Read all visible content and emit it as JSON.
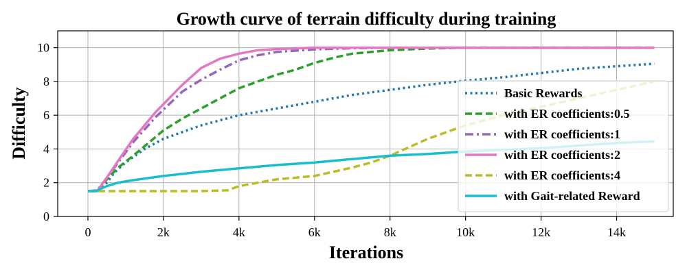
{
  "chart_data": {
    "type": "line",
    "title": "Growth curve of terrain difficulty during training",
    "xlabel": "Iterations",
    "ylabel": "Difficulty",
    "xlim": [
      -800,
      15500
    ],
    "ylim": [
      0,
      11
    ],
    "grid": true,
    "legend_position": "center-right",
    "x_ticks": [
      0,
      2000,
      4000,
      6000,
      8000,
      10000,
      12000,
      14000
    ],
    "x_tick_labels": [
      "0",
      "2k",
      "4k",
      "6k",
      "8k",
      "10k",
      "12k",
      "14k"
    ],
    "y_ticks": [
      0,
      2,
      4,
      6,
      8,
      10
    ],
    "y_tick_labels": [
      "0",
      "2",
      "4",
      "6",
      "8",
      "10"
    ],
    "series": [
      {
        "name": "Basic Rewards",
        "color": "#1f77b4",
        "style": "dotted",
        "x": [
          0,
          300,
          500,
          700,
          1000,
          1500,
          2000,
          2500,
          3000,
          4000,
          5000,
          6000,
          7000,
          8000,
          9000,
          10000,
          11000,
          12000,
          13000,
          14000,
          15000
        ],
        "y": [
          1.5,
          1.55,
          2.0,
          2.6,
          3.2,
          4.0,
          4.6,
          5.0,
          5.4,
          6.0,
          6.4,
          6.8,
          7.2,
          7.5,
          7.8,
          8.05,
          8.25,
          8.5,
          8.75,
          8.9,
          9.05
        ]
      },
      {
        "name": "with ER coefficients:0.5",
        "color": "#2ca02c",
        "style": "dashed",
        "x": [
          0,
          250,
          500,
          800,
          1200,
          2000,
          2500,
          3000,
          3500,
          4000,
          5000,
          5500,
          6000,
          6500,
          7000,
          7500,
          8000,
          9000,
          10000,
          11000,
          12000,
          13000,
          14000,
          15000
        ],
        "y": [
          1.5,
          1.5,
          2.2,
          2.9,
          3.6,
          5.1,
          5.8,
          6.4,
          7.0,
          7.6,
          8.4,
          8.7,
          9.1,
          9.4,
          9.65,
          9.75,
          9.85,
          9.95,
          10.0,
          10.0,
          10.0,
          10.0,
          10.0,
          10.0
        ]
      },
      {
        "name": "with ER coefficients:1",
        "color": "#9467bd",
        "style": "dashdot",
        "x": [
          0,
          250,
          500,
          800,
          1200,
          1800,
          2500,
          3000,
          3500,
          4000,
          4500,
          5000,
          6000,
          7000,
          8000,
          9000,
          10000,
          11000,
          12000,
          13000,
          14000,
          15000
        ],
        "y": [
          1.5,
          1.55,
          2.3,
          3.2,
          4.4,
          5.9,
          7.4,
          8.1,
          8.7,
          9.25,
          9.55,
          9.75,
          9.9,
          9.97,
          10.0,
          10.0,
          10.0,
          10.0,
          10.0,
          10.0,
          10.0,
          10.0
        ]
      },
      {
        "name": "with ER coefficients:2",
        "color": "#e377c2",
        "style": "solid",
        "x": [
          0,
          250,
          500,
          800,
          1200,
          1800,
          2500,
          3000,
          3500,
          4000,
          4500,
          5000,
          6000,
          7000,
          8000,
          9000,
          10000,
          11000,
          12000,
          13000,
          14000,
          15000
        ],
        "y": [
          1.5,
          1.5,
          2.3,
          3.3,
          4.6,
          6.2,
          7.8,
          8.8,
          9.35,
          9.65,
          9.85,
          9.92,
          10.0,
          10.0,
          10.0,
          10.0,
          10.0,
          10.0,
          10.0,
          10.0,
          10.0,
          10.0
        ]
      },
      {
        "name": "with ER coefficients:4",
        "color": "#bcbd22",
        "style": "dashed",
        "x": [
          0,
          500,
          1000,
          2000,
          3000,
          3700,
          4000,
          4500,
          5000,
          6000,
          7000,
          7500,
          8000,
          8500,
          9000,
          9500,
          10000,
          11000,
          12000,
          13000,
          14000,
          15000
        ],
        "y": [
          1.5,
          1.5,
          1.5,
          1.5,
          1.5,
          1.55,
          1.8,
          2.0,
          2.2,
          2.4,
          2.9,
          3.2,
          3.6,
          4.1,
          4.6,
          5.0,
          5.4,
          6.0,
          6.5,
          7.0,
          7.5,
          8.0
        ]
      },
      {
        "name": "with Gait-related Reward",
        "color": "#17becf",
        "style": "solid",
        "x": [
          0,
          200,
          500,
          800,
          1200,
          2000,
          3000,
          4000,
          5000,
          6000,
          7000,
          8000,
          9000,
          10000,
          11000,
          12000,
          13000,
          14000,
          15000
        ],
        "y": [
          1.5,
          1.5,
          1.8,
          2.0,
          2.15,
          2.4,
          2.65,
          2.85,
          3.05,
          3.2,
          3.4,
          3.6,
          3.7,
          3.85,
          3.95,
          4.05,
          4.2,
          4.35,
          4.45
        ]
      }
    ]
  }
}
